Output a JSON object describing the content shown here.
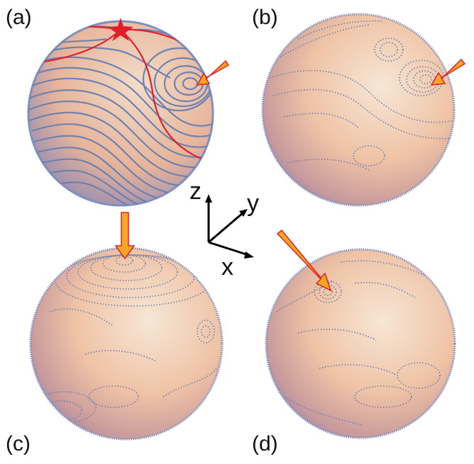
{
  "panels": {
    "a": {
      "label": "(a)"
    },
    "b": {
      "label": "(b)"
    },
    "c": {
      "label": "(c)"
    },
    "d": {
      "label": "(d)"
    }
  },
  "axes": {
    "z": "z",
    "y": "y",
    "x": "x"
  },
  "colors": {
    "sphere_highlight": "#f6e6d6",
    "sphere_mid": "#efc3a5",
    "sphere_shadow": "#b08ca8",
    "trajectory": "#6a7fb0",
    "separatrix": "#e0202a",
    "arrow_fill": "#f5a623",
    "arrow_stroke": "#e0202a"
  },
  "icons": {
    "arrow": "orange-arrow-icon",
    "star": "red-star-icon"
  }
}
